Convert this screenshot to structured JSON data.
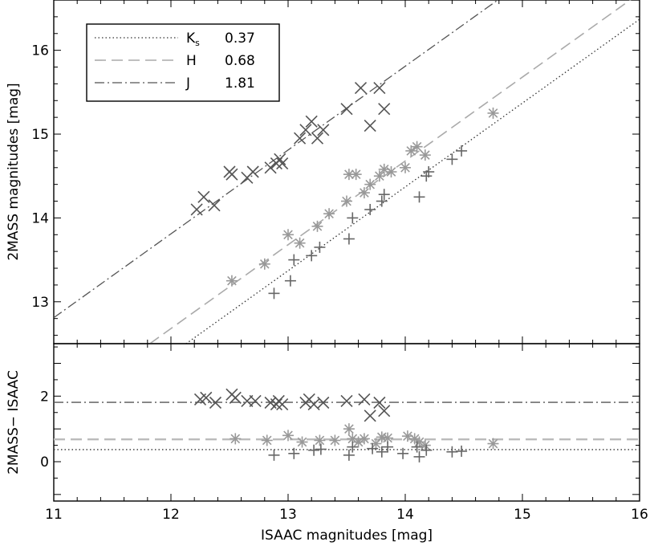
{
  "chart_data": [
    {
      "type": "scatter",
      "panel": "top",
      "xlabel": "",
      "ylabel": "2MASS magnitudes [mag]",
      "xlim": [
        11,
        16
      ],
      "ylim": [
        12.5,
        16.6
      ],
      "xticks": [
        "11",
        "12",
        "13",
        "14",
        "15",
        "16"
      ],
      "yticks": [
        {
          "value": 13,
          "label": "13"
        },
        {
          "value": 14,
          "label": "14"
        },
        {
          "value": 15,
          "label": "15"
        },
        {
          "value": 16,
          "label": "16"
        }
      ],
      "legend": {
        "placement": "top-left",
        "entries": [
          {
            "label": "K",
            "sub": "s",
            "value_label": "0.37",
            "style": "dotted",
            "color": "#333333"
          },
          {
            "label": "H",
            "sub": "",
            "value_label": "0.68",
            "style": "dashed",
            "color": "#aaaaaa"
          },
          {
            "label": "J",
            "sub": "",
            "value_label": "1.81",
            "style": "dashdot",
            "color": "#555555"
          }
        ]
      },
      "series": [
        {
          "band": "J",
          "marker": "x",
          "color": "#555555",
          "fit_offset": 1.81,
          "points": [
            [
              12.22,
              14.1
            ],
            [
              12.28,
              14.25
            ],
            [
              12.37,
              14.15
            ],
            [
              12.5,
              14.55
            ],
            [
              12.52,
              14.52
            ],
            [
              12.65,
              14.48
            ],
            [
              12.7,
              14.55
            ],
            [
              12.85,
              14.6
            ],
            [
              12.9,
              14.65
            ],
            [
              12.93,
              14.7
            ],
            [
              12.95,
              14.65
            ],
            [
              13.1,
              14.95
            ],
            [
              13.15,
              15.05
            ],
            [
              13.2,
              15.15
            ],
            [
              13.25,
              14.95
            ],
            [
              13.3,
              15.05
            ],
            [
              13.5,
              15.3
            ],
            [
              13.62,
              15.55
            ],
            [
              13.7,
              15.1
            ],
            [
              13.78,
              15.55
            ],
            [
              13.82,
              15.3
            ]
          ]
        },
        {
          "band": "H",
          "marker": "asterisk",
          "color": "#999999",
          "fit_offset": 0.68,
          "points": [
            [
              12.52,
              13.25
            ],
            [
              12.8,
              13.45
            ],
            [
              13.0,
              13.8
            ],
            [
              13.1,
              13.7
            ],
            [
              13.25,
              13.9
            ],
            [
              13.35,
              14.05
            ],
            [
              13.5,
              14.2
            ],
            [
              13.52,
              14.52
            ],
            [
              13.58,
              14.52
            ],
            [
              13.65,
              14.3
            ],
            [
              13.7,
              14.4
            ],
            [
              13.78,
              14.5
            ],
            [
              13.82,
              14.58
            ],
            [
              13.88,
              14.55
            ],
            [
              14.0,
              14.6
            ],
            [
              14.05,
              14.8
            ],
            [
              14.1,
              14.85
            ],
            [
              14.17,
              14.75
            ],
            [
              14.75,
              15.25
            ]
          ]
        },
        {
          "band": "Ks",
          "marker": "plus",
          "color": "#666666",
          "fit_offset": 0.37,
          "points": [
            [
              12.88,
              13.1
            ],
            [
              13.02,
              13.25
            ],
            [
              13.05,
              13.5
            ],
            [
              13.2,
              13.55
            ],
            [
              13.27,
              13.65
            ],
            [
              13.52,
              13.75
            ],
            [
              13.55,
              14.0
            ],
            [
              13.7,
              14.1
            ],
            [
              13.8,
              14.2
            ],
            [
              13.82,
              14.28
            ],
            [
              14.12,
              14.25
            ],
            [
              14.18,
              14.5
            ],
            [
              14.2,
              14.55
            ],
            [
              14.4,
              14.7
            ],
            [
              14.48,
              14.8
            ]
          ]
        }
      ]
    },
    {
      "type": "scatter",
      "panel": "bottom",
      "xlabel": "ISAAC magnitudes [mag]",
      "ylabel": "2MASS− ISAAC",
      "xlim": [
        11,
        16
      ],
      "ylim": [
        -1.2,
        3.6
      ],
      "xticks": [
        "11",
        "12",
        "13",
        "14",
        "15",
        "16"
      ],
      "yticks": [
        {
          "value": 0,
          "label": "0"
        },
        {
          "value": 2,
          "label": "2"
        }
      ],
      "hlines": [
        {
          "band": "Ks",
          "value": 0.37,
          "style": "dotted",
          "color": "#333333"
        },
        {
          "band": "H",
          "value": 0.68,
          "style": "dashed",
          "color": "#bbbbbb"
        },
        {
          "band": "J",
          "value": 1.81,
          "style": "dashdot",
          "color": "#555555"
        }
      ],
      "series": [
        {
          "band": "J",
          "marker": "x",
          "color": "#555555",
          "points": [
            [
              12.25,
              1.9
            ],
            [
              12.3,
              1.95
            ],
            [
              12.38,
              1.8
            ],
            [
              12.52,
              2.05
            ],
            [
              12.55,
              1.95
            ],
            [
              12.65,
              1.85
            ],
            [
              12.72,
              1.85
            ],
            [
              12.85,
              1.8
            ],
            [
              12.9,
              1.75
            ],
            [
              12.92,
              1.85
            ],
            [
              12.95,
              1.75
            ],
            [
              13.15,
              1.8
            ],
            [
              13.18,
              1.9
            ],
            [
              13.22,
              1.75
            ],
            [
              13.3,
              1.8
            ],
            [
              13.5,
              1.85
            ],
            [
              13.65,
              1.9
            ],
            [
              13.7,
              1.4
            ],
            [
              13.78,
              1.8
            ],
            [
              13.82,
              1.55
            ]
          ]
        },
        {
          "band": "H",
          "marker": "asterisk",
          "color": "#999999",
          "points": [
            [
              12.55,
              0.7
            ],
            [
              12.82,
              0.65
            ],
            [
              13.0,
              0.8
            ],
            [
              13.12,
              0.6
            ],
            [
              13.27,
              0.65
            ],
            [
              13.4,
              0.65
            ],
            [
              13.52,
              1.0
            ],
            [
              13.55,
              0.7
            ],
            [
              13.6,
              0.6
            ],
            [
              13.65,
              0.7
            ],
            [
              13.75,
              0.55
            ],
            [
              13.8,
              0.75
            ],
            [
              13.85,
              0.72
            ],
            [
              14.02,
              0.78
            ],
            [
              14.08,
              0.7
            ],
            [
              14.12,
              0.6
            ],
            [
              14.17,
              0.5
            ],
            [
              14.75,
              0.55
            ]
          ]
        },
        {
          "band": "Ks",
          "marker": "plus",
          "color": "#666666",
          "points": [
            [
              12.88,
              0.2
            ],
            [
              13.05,
              0.25
            ],
            [
              13.22,
              0.35
            ],
            [
              13.28,
              0.38
            ],
            [
              13.52,
              0.2
            ],
            [
              13.55,
              0.45
            ],
            [
              13.72,
              0.4
            ],
            [
              13.8,
              0.3
            ],
            [
              13.85,
              0.45
            ],
            [
              13.98,
              0.25
            ],
            [
              14.1,
              0.45
            ],
            [
              14.12,
              0.15
            ],
            [
              14.18,
              0.35
            ],
            [
              14.4,
              0.3
            ],
            [
              14.48,
              0.32
            ]
          ]
        }
      ]
    }
  ]
}
